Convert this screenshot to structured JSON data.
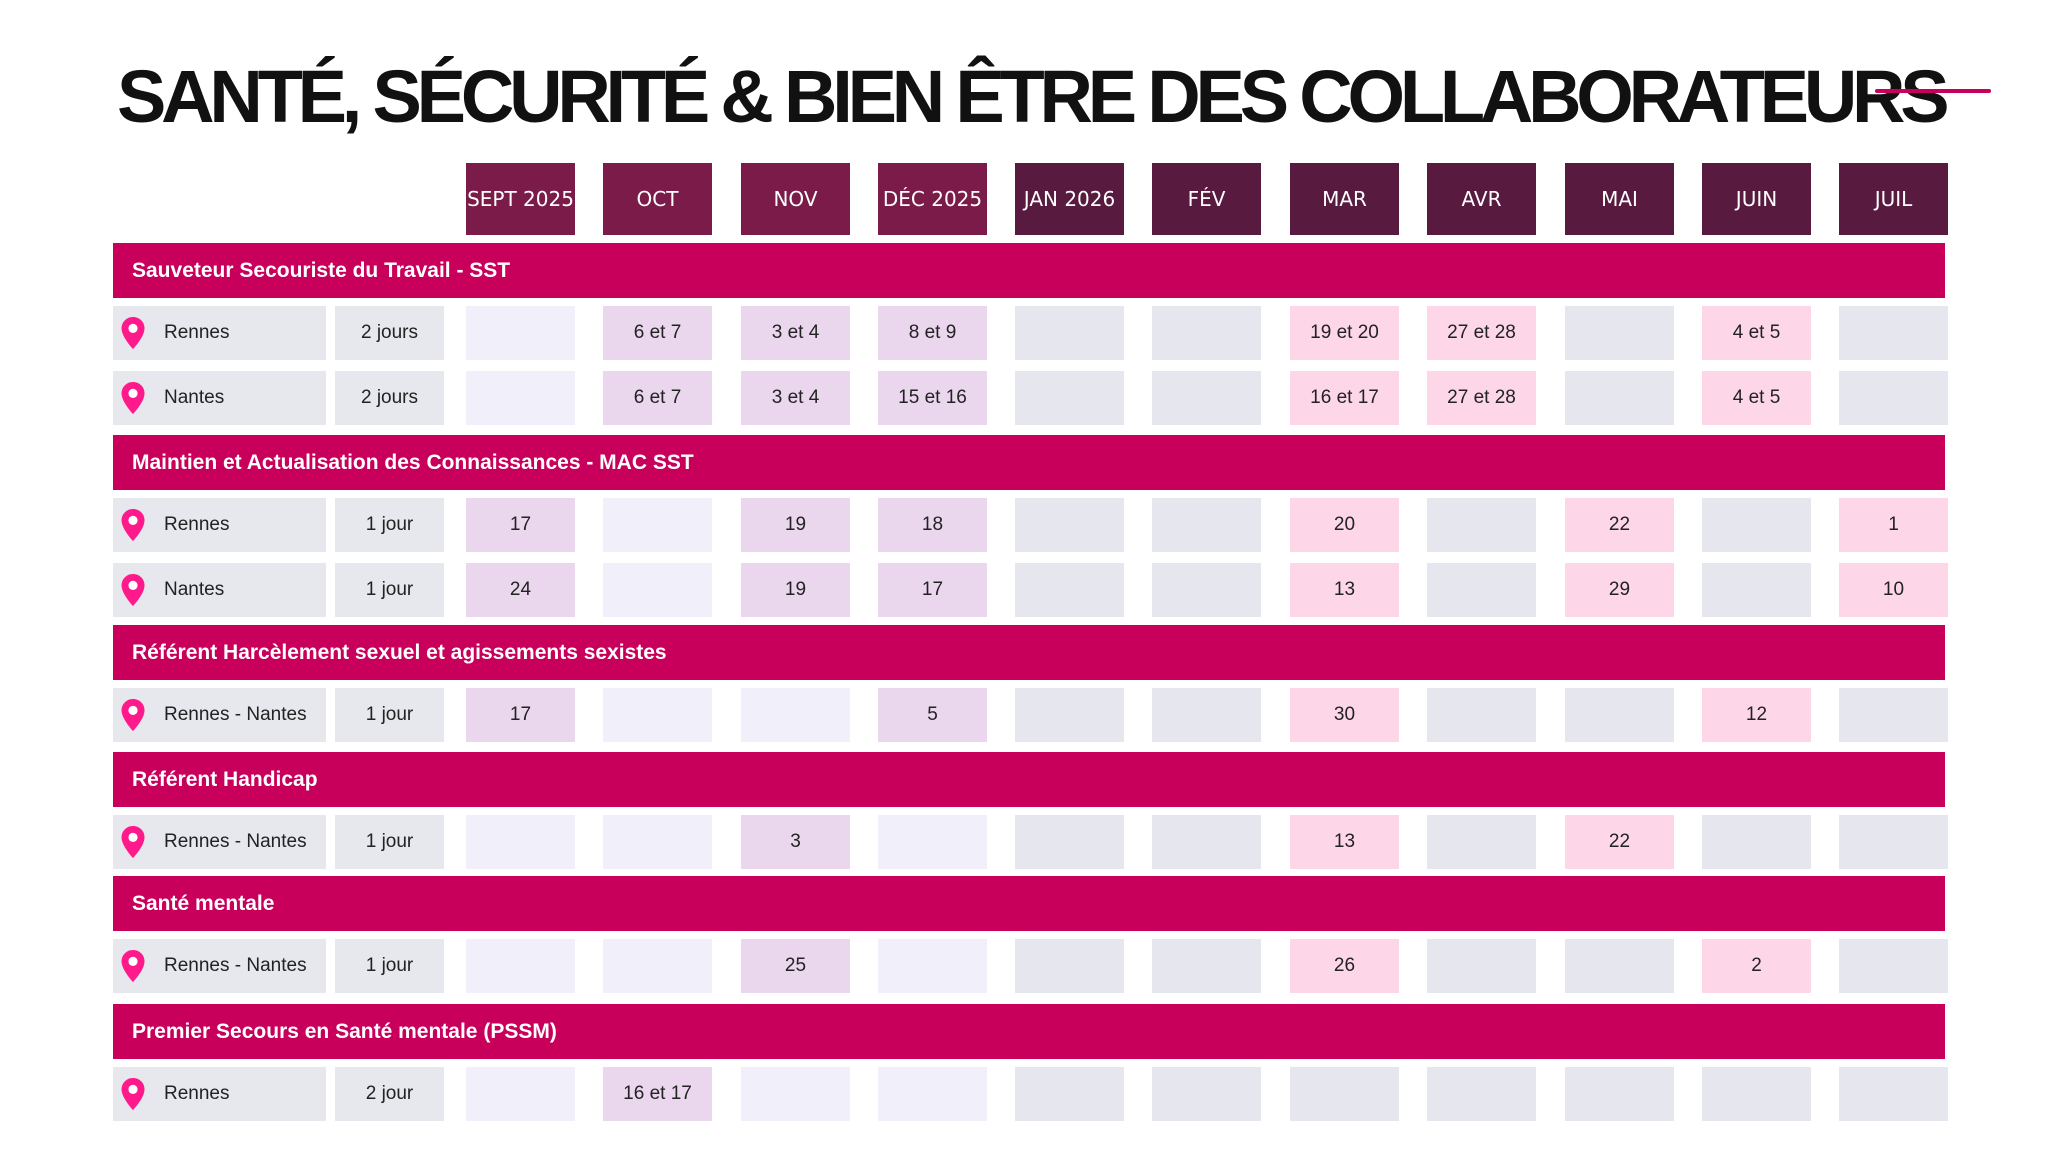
{
  "title": "SANTÉ, SÉCURITÉ & BIEN ÊTRE DES COLLABORATEURS",
  "colors": {
    "section": "#c8005c",
    "month_2025": "#7a1b49",
    "month_2026": "#581a3f",
    "cell_2025_empty": "#f1f0fa",
    "cell_2025_filled": "#ead7ee",
    "cell_2026_empty": "#e6e6ee",
    "cell_2026_filled": "#fdd7e8",
    "pin": "#ff1a8c"
  },
  "icons": {
    "location": "map-pin-icon"
  },
  "months": [
    {
      "label": "SEPT 2025",
      "year": "2025"
    },
    {
      "label": "OCT",
      "year": "2025"
    },
    {
      "label": "NOV",
      "year": "2025"
    },
    {
      "label": "DÉC 2025",
      "year": "2025"
    },
    {
      "label": "JAN 2026",
      "year": "2026"
    },
    {
      "label": "FÉV",
      "year": "2026"
    },
    {
      "label": "MAR",
      "year": "2026"
    },
    {
      "label": "AVR",
      "year": "2026"
    },
    {
      "label": "MAI",
      "year": "2026"
    },
    {
      "label": "JUIN",
      "year": "2026"
    },
    {
      "label": "JUIL",
      "year": "2026"
    }
  ],
  "sections": [
    {
      "name": "Sauveteur Secouriste du Travail - SST",
      "rows": [
        {
          "location": "Rennes",
          "duration": "2 jours",
          "dates": [
            "",
            "6 et 7",
            "3 et 4",
            "8 et 9",
            "",
            "",
            "19 et 20",
            "27 et 28",
            "",
            "4 et 5",
            ""
          ]
        },
        {
          "location": "Nantes",
          "duration": "2 jours",
          "dates": [
            "",
            "6 et 7",
            "3 et 4",
            "15 et 16",
            "",
            "",
            "16 et 17",
            "27 et 28",
            "",
            "4 et 5",
            ""
          ]
        }
      ]
    },
    {
      "name": "Maintien et Actualisation des Connaissances - MAC SST",
      "rows": [
        {
          "location": "Rennes",
          "duration": "1 jour",
          "dates": [
            "17",
            "",
            "19",
            "18",
            "",
            "",
            "20",
            "",
            "22",
            "",
            "1"
          ]
        },
        {
          "location": "Nantes",
          "duration": "1 jour",
          "dates": [
            "24",
            "",
            "19",
            "17",
            "",
            "",
            "13",
            "",
            "29",
            "",
            "10"
          ]
        }
      ]
    },
    {
      "name": "Référent Harcèlement sexuel et agissements sexistes",
      "rows": [
        {
          "location": "Rennes - Nantes",
          "duration": "1 jour",
          "dates": [
            "17",
            "",
            "",
            "5",
            "",
            "",
            "30",
            "",
            "",
            "12",
            ""
          ]
        }
      ]
    },
    {
      "name": "Référent Handicap",
      "rows": [
        {
          "location": "Rennes - Nantes",
          "duration": "1 jour",
          "dates": [
            "",
            "",
            "3",
            "",
            "",
            "",
            "13",
            "",
            "22",
            "",
            ""
          ]
        }
      ]
    },
    {
      "name": "Santé mentale",
      "rows": [
        {
          "location": "Rennes - Nantes",
          "duration": "1 jour",
          "dates": [
            "",
            "",
            "25",
            "",
            "",
            "",
            "26",
            "",
            "",
            "2",
            ""
          ]
        }
      ]
    },
    {
      "name": "Premier Secours en Santé mentale (PSSM)",
      "rows": [
        {
          "location": "Rennes",
          "duration": "2 jour",
          "dates": [
            "",
            "16 et 17",
            "",
            "",
            "",
            "",
            "",
            "",
            "",
            "",
            ""
          ]
        }
      ]
    }
  ]
}
